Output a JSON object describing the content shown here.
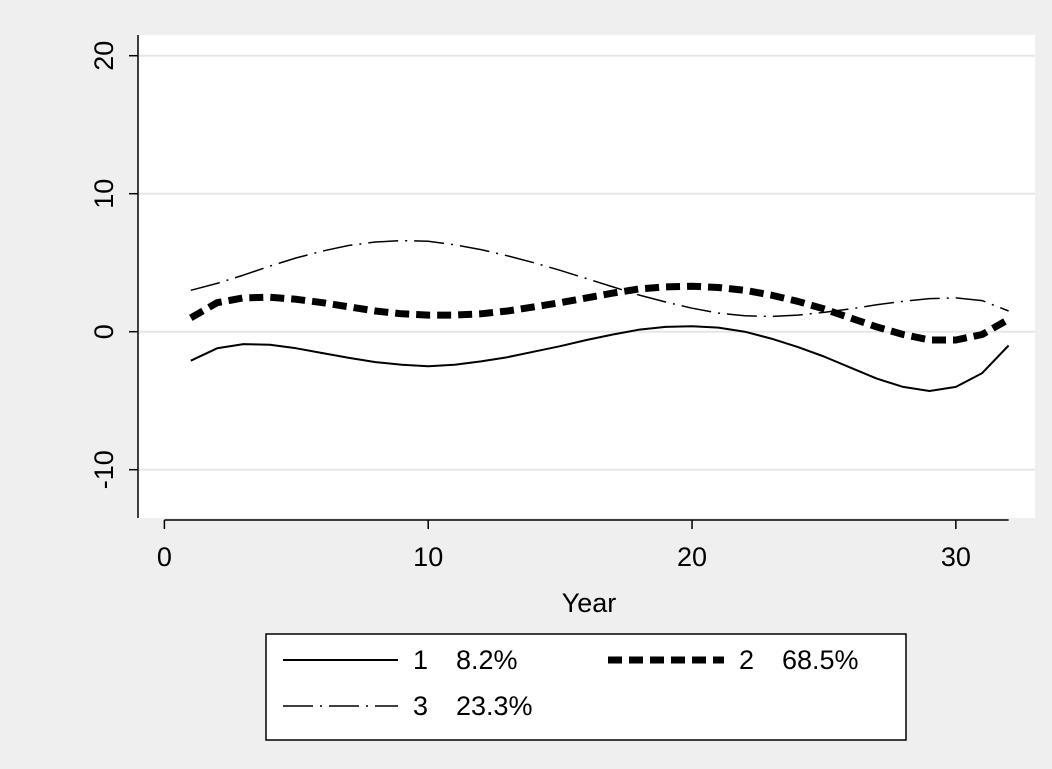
{
  "chart_data": {
    "type": "line",
    "title": "",
    "xlabel": "Year",
    "ylabel": "",
    "xlim": [
      -1,
      33
    ],
    "ylim": [
      -13.5,
      21.5
    ],
    "x_ticks": [
      0,
      10,
      20,
      30
    ],
    "y_ticks": [
      -10,
      0,
      10,
      20
    ],
    "x_tick_labels": [
      "0",
      "10",
      "20",
      "30"
    ],
    "y_tick_labels": [
      "-10",
      "0",
      "10",
      "20"
    ],
    "grid": "horizontal",
    "legend_position": "bottom",
    "x": [
      1,
      2,
      3,
      4,
      5,
      6,
      7,
      8,
      9,
      10,
      11,
      12,
      13,
      14,
      15,
      16,
      17,
      18,
      19,
      20,
      21,
      22,
      23,
      24,
      25,
      26,
      27,
      28,
      29,
      30,
      31,
      32
    ],
    "series": [
      {
        "name": "1",
        "label": "8.2%",
        "style": "solid",
        "color": "#000000",
        "values": [
          -2.1,
          -1.2,
          -0.9,
          -0.95,
          -1.2,
          -1.55,
          -1.9,
          -2.2,
          -2.4,
          -2.5,
          -2.4,
          -2.15,
          -1.85,
          -1.45,
          -1.05,
          -0.6,
          -0.2,
          0.15,
          0.35,
          0.4,
          0.3,
          0.0,
          -0.5,
          -1.1,
          -1.8,
          -2.6,
          -3.4,
          -4.0,
          -4.3,
          -4.0,
          -3.0,
          -1.0
        ]
      },
      {
        "name": "2",
        "label": "68.5%",
        "style": "dashed-thick",
        "color": "#000000",
        "values": [
          1.0,
          2.1,
          2.45,
          2.5,
          2.35,
          2.1,
          1.8,
          1.5,
          1.3,
          1.2,
          1.2,
          1.3,
          1.5,
          1.8,
          2.1,
          2.45,
          2.8,
          3.1,
          3.25,
          3.3,
          3.2,
          3.0,
          2.65,
          2.2,
          1.65,
          1.0,
          0.35,
          -0.2,
          -0.6,
          -0.6,
          -0.2,
          0.9
        ]
      },
      {
        "name": "3",
        "label": "23.3%",
        "style": "dash-dot",
        "color": "#000000",
        "values": [
          3.0,
          3.5,
          4.1,
          4.75,
          5.35,
          5.85,
          6.25,
          6.5,
          6.6,
          6.55,
          6.3,
          5.95,
          5.5,
          5.0,
          4.45,
          3.85,
          3.25,
          2.65,
          2.15,
          1.7,
          1.35,
          1.15,
          1.1,
          1.2,
          1.4,
          1.65,
          1.95,
          2.2,
          2.4,
          2.45,
          2.25,
          1.5
        ]
      }
    ]
  }
}
